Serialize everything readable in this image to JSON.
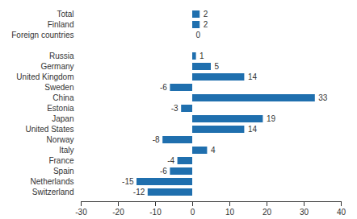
{
  "chart_data": {
    "type": "bar",
    "orientation": "horizontal",
    "categories": [
      "Total",
      "Finland",
      "Foreign countries",
      null,
      "Russia",
      "Germany",
      "United Kingdom",
      "Sweden",
      "China",
      "Estonia",
      "Japan",
      "United States",
      "Norway",
      "Italy",
      "France",
      "Spain",
      "Netherlands",
      "Switzerland"
    ],
    "values": [
      2,
      2,
      0,
      null,
      1,
      5,
      14,
      -6,
      33,
      -3,
      19,
      14,
      -8,
      4,
      -4,
      -6,
      -15,
      -12
    ],
    "color": "#1f6fae",
    "xlim": [
      -30,
      40
    ],
    "xticks": [
      -30,
      -20,
      -10,
      0,
      10,
      20,
      30,
      40
    ],
    "grid": false,
    "data_labels": true
  }
}
